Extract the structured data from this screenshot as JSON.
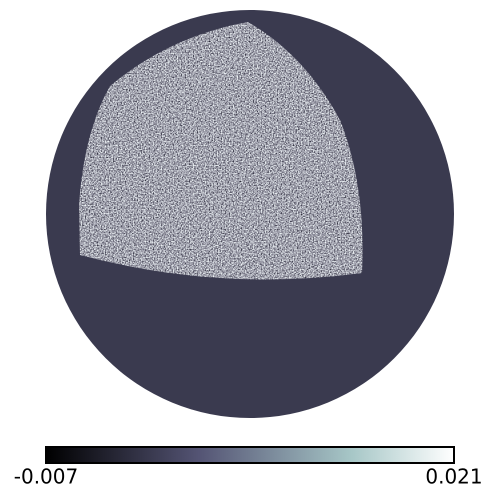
{
  "chart_data": {
    "type": "map",
    "projection": "orthographic",
    "cmap": "bone",
    "colorbar": {
      "ticks": [
        -0.007,
        0.021
      ]
    }
  }
}
